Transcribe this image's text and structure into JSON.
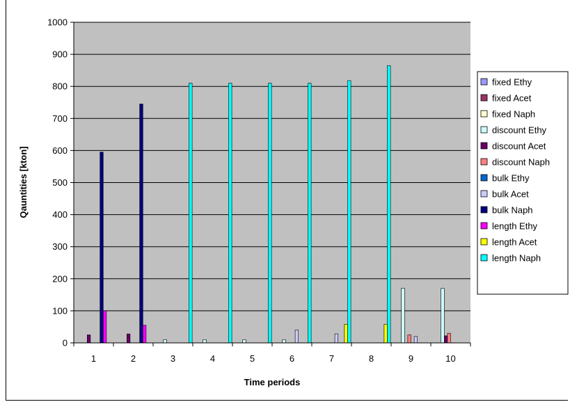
{
  "chart_data": {
    "type": "bar",
    "title": "",
    "xlabel": "Time periods",
    "ylabel": "Qauntities [kton]",
    "ylim": [
      0,
      1000
    ],
    "yticks": [
      0,
      100,
      200,
      300,
      400,
      500,
      600,
      700,
      800,
      900,
      1000
    ],
    "categories": [
      "1",
      "2",
      "3",
      "4",
      "5",
      "6",
      "7",
      "8",
      "9",
      "10"
    ],
    "grid": true,
    "legend_position": "right",
    "plot_background": "#c0c0c0",
    "series": [
      {
        "name": "fixed Ethy",
        "color": "#9999ff",
        "values": [
          0,
          0,
          0,
          0,
          0,
          0,
          0,
          0,
          0,
          0
        ]
      },
      {
        "name": "fixed Acet",
        "color": "#993366",
        "values": [
          0,
          0,
          0,
          0,
          0,
          0,
          0,
          0,
          0,
          0
        ]
      },
      {
        "name": "fixed Naph",
        "color": "#ffffcc",
        "values": [
          0,
          0,
          0,
          0,
          0,
          0,
          0,
          0,
          0,
          0
        ]
      },
      {
        "name": "discount Ethy",
        "color": "#ccffff",
        "values": [
          0,
          0,
          10,
          10,
          10,
          10,
          0,
          0,
          170,
          170
        ]
      },
      {
        "name": "discount Acet",
        "color": "#660066",
        "values": [
          25,
          28,
          0,
          0,
          0,
          0,
          0,
          0,
          0,
          22
        ]
      },
      {
        "name": "discount Naph",
        "color": "#ff8080",
        "values": [
          0,
          0,
          0,
          0,
          0,
          0,
          0,
          0,
          25,
          30
        ]
      },
      {
        "name": "bulk Ethy",
        "color": "#0066cc",
        "values": [
          0,
          0,
          0,
          0,
          0,
          0,
          0,
          0,
          0,
          0
        ]
      },
      {
        "name": "bulk Acet",
        "color": "#ccccff",
        "values": [
          0,
          0,
          0,
          0,
          0,
          40,
          28,
          0,
          20,
          0
        ]
      },
      {
        "name": "bulk Naph",
        "color": "#000080",
        "values": [
          595,
          745,
          0,
          0,
          0,
          0,
          0,
          0,
          0,
          0
        ]
      },
      {
        "name": "length Ethy",
        "color": "#ff00ff",
        "values": [
          100,
          55,
          0,
          0,
          0,
          0,
          0,
          0,
          0,
          0
        ]
      },
      {
        "name": "length Acet",
        "color": "#ffff00",
        "values": [
          0,
          0,
          0,
          0,
          0,
          0,
          58,
          58,
          0,
          0
        ]
      },
      {
        "name": "length Naph",
        "color": "#00ffff",
        "values": [
          0,
          0,
          810,
          810,
          810,
          810,
          818,
          865,
          0,
          0
        ]
      }
    ]
  }
}
